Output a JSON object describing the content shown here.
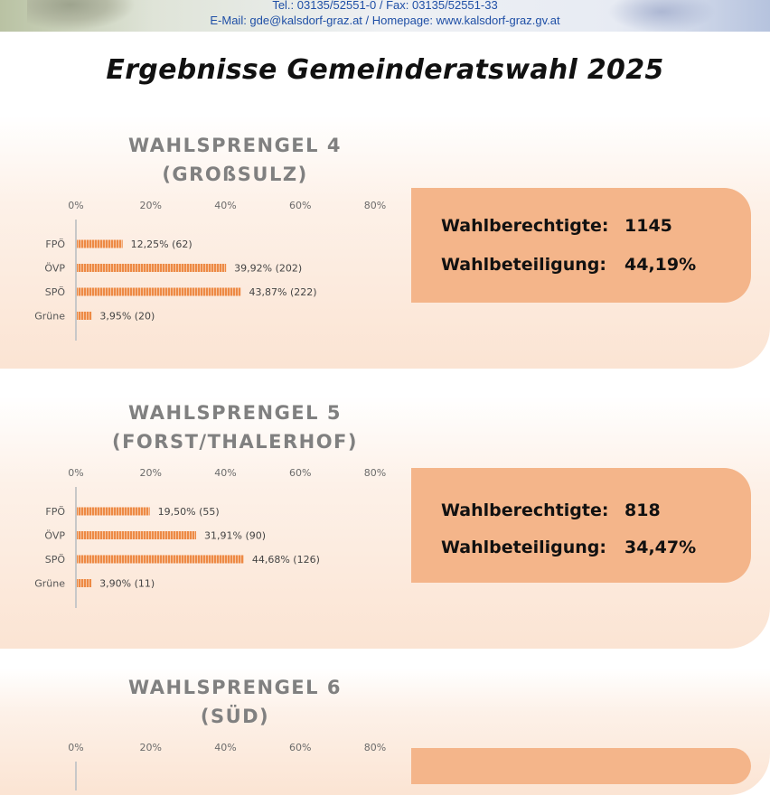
{
  "header": {
    "contact_line": "Tel.: 03135/52551-0 / Fax: 03135/52551-33",
    "web_line": "E-Mail: gde@kalsdorf-graz.at / Homepage: www.kalsdorf-graz.gv.at"
  },
  "title": "Ergebnisse Gemeinderatswahl 2025",
  "colors": {
    "bar": "#ed8a45",
    "axis": "#c8c8c8",
    "box": "#f4b58a",
    "section_title": "#808080"
  },
  "info_labels": {
    "eligible": "Wahlberechtigte:",
    "turnout": "Wahlbeteiligung:"
  },
  "sections": [
    {
      "title_line1": "WAHLSPRENGEL 4",
      "title_line2": "(GROßSULZ)",
      "eligible": "1145",
      "turnout": "44,19%"
    },
    {
      "title_line1": "WAHLSPRENGEL 5",
      "title_line2": "(FORST/THALERHOF)",
      "eligible": "818",
      "turnout": "34,47%"
    },
    {
      "title_line1": "WAHLSPRENGEL 6",
      "title_line2": "(SÜD)",
      "eligible": "",
      "turnout": ""
    }
  ],
  "chart_data": [
    {
      "type": "bar",
      "orientation": "horizontal",
      "title": "WAHLSPRENGEL 4 (GROßSULZ)",
      "categories": [
        "FPÖ",
        "ÖVP",
        "SPÖ",
        "Grüne"
      ],
      "values": [
        12.25,
        39.92,
        43.87,
        3.95
      ],
      "data_labels": [
        "12,25% (62)",
        "39,92% (202)",
        "43,87% (222)",
        "3,95% (20)"
      ],
      "xticks": [
        "0%",
        "20%",
        "40%",
        "60%",
        "80%"
      ],
      "xlim": [
        0,
        80
      ],
      "grid": false,
      "legend": "none"
    },
    {
      "type": "bar",
      "orientation": "horizontal",
      "title": "WAHLSPRENGEL 5 (FORST/THALERHOF)",
      "categories": [
        "FPÖ",
        "ÖVP",
        "SPÖ",
        "Grüne"
      ],
      "values": [
        19.5,
        31.91,
        44.68,
        3.9
      ],
      "data_labels": [
        "19,50% (55)",
        "31,91% (90)",
        "44,68% (126)",
        "3,90% (11)"
      ],
      "xticks": [
        "0%",
        "20%",
        "40%",
        "60%",
        "80%"
      ],
      "xlim": [
        0,
        80
      ],
      "grid": false,
      "legend": "none"
    },
    {
      "type": "bar",
      "orientation": "horizontal",
      "title": "WAHLSPRENGEL 6 (SÜD)",
      "categories": [],
      "values": [],
      "data_labels": [],
      "xticks": [
        "0%",
        "20%",
        "40%",
        "60%",
        "80%"
      ],
      "xlim": [
        0,
        80
      ],
      "grid": false,
      "legend": "none"
    }
  ]
}
